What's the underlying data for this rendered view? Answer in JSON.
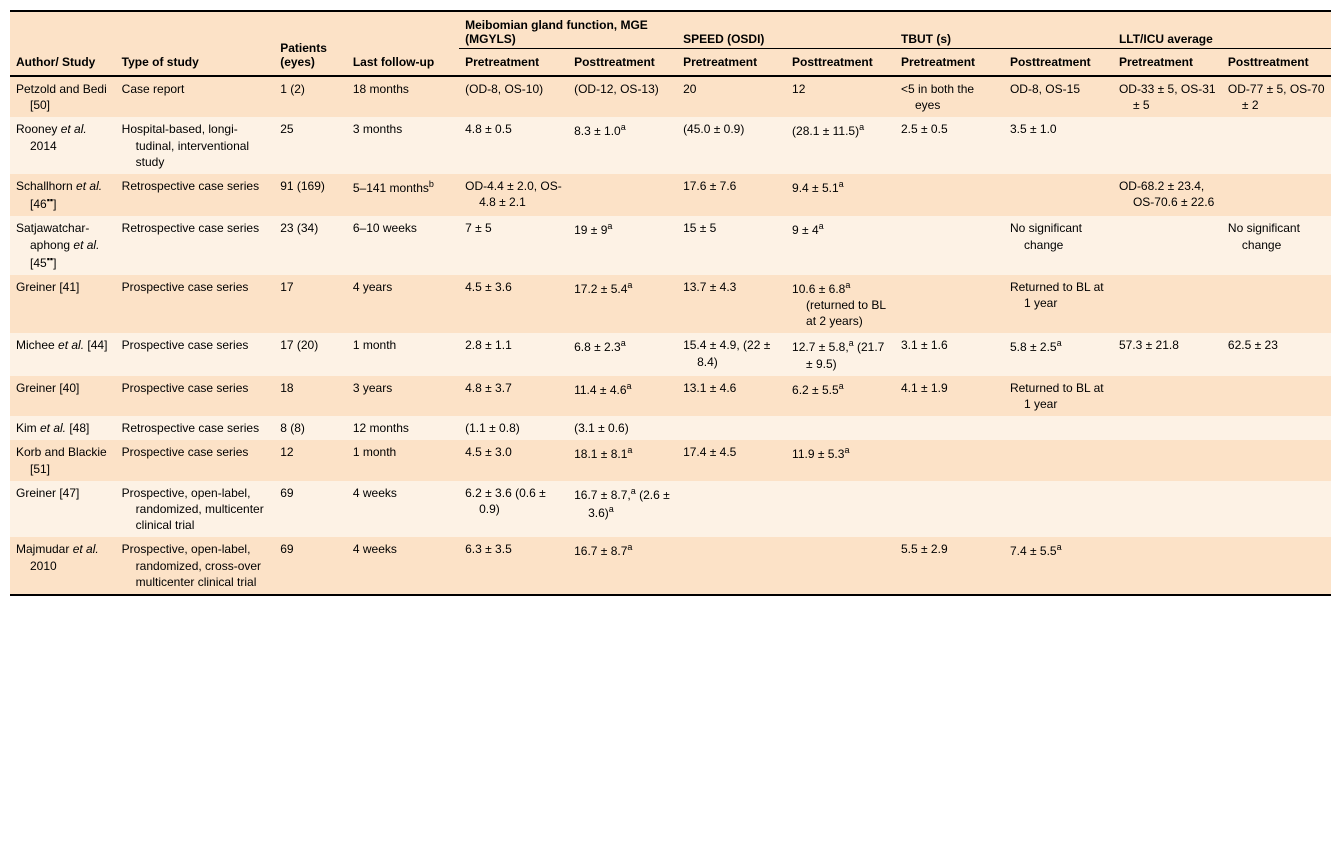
{
  "colors": {
    "row_odd": "#fce2c7",
    "row_even": "#fdf2e5",
    "rule": "#000000",
    "text": "#000000",
    "page_bg": "#ffffff"
  },
  "typography": {
    "family": "Helvetica Neue, Helvetica, Arial, sans-serif",
    "body_size_pt": 9,
    "header_weight": "bold"
  },
  "headers": {
    "author": "Author/\nStudy",
    "type": "Type of study",
    "patients": "Patients (eyes)",
    "followup": "Last follow-up",
    "groups": {
      "mg": "Meibomian gland func­tion, MGE (MGYLS)",
      "speed": "SPEED (OSDI)",
      "tbut": "TBUT (s)",
      "llt": "LLT/ICU average"
    },
    "sub": {
      "pre": "Pretreat­ment",
      "post": "Posttreat­ment"
    }
  },
  "rows": [
    {
      "author_html": "Petzold and Bedi [50]",
      "type": "Case report",
      "patients": "1 (2)",
      "followup": "18 months",
      "mg_pre": "(OD-8, OS-10)",
      "mg_post": "(OD-12, OS-13)",
      "speed_pre": "20",
      "speed_post": "12",
      "tbut_pre": "<5 in both the eyes",
      "tbut_post": "OD-8, OS-15",
      "llt_pre": "OD-33 ± 5, OS-31 ± 5",
      "llt_post": "OD-77 ± 5, OS-70 ± 2"
    },
    {
      "author_html": "Rooney <span class=\"it\">et al.</span> 2014",
      "type": "Hospital-based, longi­tudinal, interventional study",
      "patients": "25",
      "followup": "3 months",
      "mg_pre": "4.8 ± 0.5",
      "mg_post": "8.3 ± 1.0<sup>a</sup>",
      "speed_pre": "(45.0 ± 0.9)",
      "speed_post": "(28.1 ± 11.5)<sup>a</sup>",
      "tbut_pre": "2.5 ± 0.5",
      "tbut_post": "3.5 ± 1.0",
      "llt_pre": "",
      "llt_post": ""
    },
    {
      "author_html": "Schallhorn <span class=\"it\">et al.</span> [46<sup>▪▪</sup>]",
      "type": "Retrospective case series",
      "patients": "91 (169)",
      "followup": "5–141 months<sup>b</sup>",
      "mg_pre": "OD-4.4 ± 2.0, OS-4.8 ± 2.1",
      "mg_post": "",
      "speed_pre": "17.6 ± 7.6",
      "speed_post": "9.4 ± 5.1<sup>a</sup>",
      "tbut_pre": "",
      "tbut_post": "",
      "llt_pre": "OD-68.2 ± 23.4, OS-70.6 ± 22.6",
      "llt_post": ""
    },
    {
      "author_html": "Satjawatchar­aphong <span class=\"it\">et al.</span> [45<sup>▪▪</sup>]",
      "type": "Retrospective case series",
      "patients": "23 (34)",
      "followup": "6–10 weeks",
      "mg_pre": "7 ± 5",
      "mg_post": "19 ± 9<sup>a</sup>",
      "speed_pre": "15 ± 5",
      "speed_post": "9 ± 4<sup>a</sup>",
      "tbut_pre": "",
      "tbut_post": "No significant change",
      "llt_pre": "",
      "llt_post": "No significant change"
    },
    {
      "author_html": "Greiner [41]",
      "type": "Prospective case series",
      "patients": "17",
      "followup": "4 years",
      "mg_pre": "4.5 ± 3.6",
      "mg_post": "17.2 ± 5.4<sup>a</sup>",
      "speed_pre": "13.7 ± 4.3",
      "speed_post": "10.6 ± 6.8<sup>a</sup> (returned to BL at 2 years)",
      "tbut_pre": "",
      "tbut_post": "Returned to BL at 1 year",
      "llt_pre": "",
      "llt_post": ""
    },
    {
      "author_html": "Michee <span class=\"it\">et al.</span> [44]",
      "type": "Prospective case series",
      "patients": "17 (20)",
      "followup": "1 month",
      "mg_pre": "2.8 ± 1.1",
      "mg_post": "6.8 ± 2.3<sup>a</sup>",
      "speed_pre": "15.4 ± 4.9, (22 ± 8.4)",
      "speed_post": "12.7 ± 5.8,<sup>a</sup> (21.7 ± 9.5)",
      "tbut_pre": "3.1 ± 1.6",
      "tbut_post": "5.8 ± 2.5<sup>a</sup>",
      "llt_pre": "57.3 ± 21.8",
      "llt_post": "62.5 ± 23"
    },
    {
      "author_html": "Greiner [40]",
      "type": "Prospective case series",
      "patients": "18",
      "followup": "3 years",
      "mg_pre": "4.8 ± 3.7",
      "mg_post": "11.4 ± 4.6<sup>a</sup>",
      "speed_pre": "13.1 ± 4.6",
      "speed_post": "6.2 ± 5.5<sup>a</sup>",
      "tbut_pre": "4.1 ± 1.9",
      "tbut_post": "Returned to BL at 1 year",
      "llt_pre": "",
      "llt_post": ""
    },
    {
      "author_html": "Kim <span class=\"it\">et al.</span> [48]",
      "type": "Retrospective case series",
      "patients": "8 (8)",
      "followup": "12 months",
      "mg_pre": "(1.1 ± 0.8)",
      "mg_post": "(3.1 ± 0.6)",
      "speed_pre": "",
      "speed_post": "",
      "tbut_pre": "",
      "tbut_post": "",
      "llt_pre": "",
      "llt_post": ""
    },
    {
      "author_html": "Korb and Blackie [51]",
      "type": "Prospective case series",
      "patients": "12",
      "followup": "1 month",
      "mg_pre": "4.5 ± 3.0",
      "mg_post": "18.1 ± 8.1<sup>a</sup>",
      "speed_pre": "17.4 ± 4.5",
      "speed_post": "11.9 ± 5.3<sup>a</sup>",
      "tbut_pre": "",
      "tbut_post": "",
      "llt_pre": "",
      "llt_post": ""
    },
    {
      "author_html": "Greiner [47]",
      "type": "Prospective, open-label, randomized, multi­center clinical trial",
      "patients": "69",
      "followup": "4 weeks",
      "mg_pre": "6.2 ± 3.6 (0.6 ± 0.9)",
      "mg_post": "16.7 ± 8.7,<sup>a</sup> (2.6 ± 3.6)<sup>a</sup>",
      "speed_pre": "",
      "speed_post": "",
      "tbut_pre": "",
      "tbut_post": "",
      "llt_pre": "",
      "llt_post": ""
    },
    {
      "author_html": "Majmudar <span class=\"it\">et al.</span> 2010",
      "type": "Prospective, open-label, randomized, cross-over multicenter clinical trial",
      "patients": "69",
      "followup": "4 weeks",
      "mg_pre": "6.3 ± 3.5",
      "mg_post": "16.7 ± 8.7<sup>a</sup>",
      "speed_pre": "",
      "speed_post": "",
      "tbut_pre": "5.5 ± 2.9",
      "tbut_post": "7.4 ± 5.5<sup>a</sup>",
      "llt_pre": "",
      "llt_post": ""
    }
  ]
}
